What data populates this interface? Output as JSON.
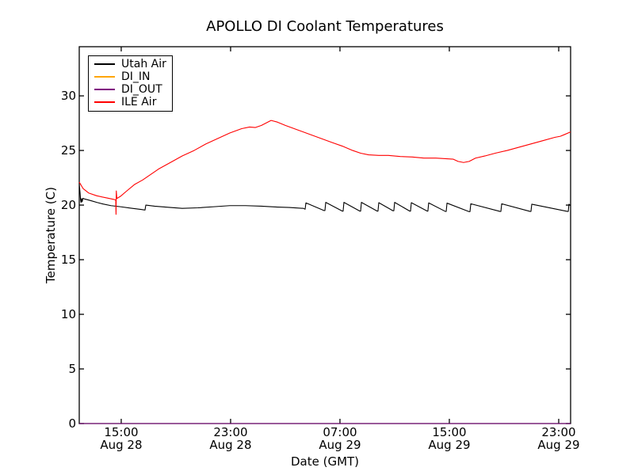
{
  "figure": {
    "title": "APOLLO DI Coolant Temperatures",
    "xlabel": "Date (GMT)",
    "ylabel": "Temperature (C)"
  },
  "chart_data": {
    "type": "line",
    "title": "APOLLO DI Coolant Temperatures",
    "xlabel": "Date (GMT)",
    "ylabel": "Temperature (C)",
    "x_axis_unit": "hours since Aug 28 00:00 GMT",
    "xlim": [
      11.93,
      47.87
    ],
    "ylim": [
      0,
      34.5
    ],
    "grid": false,
    "legend_position": "upper left",
    "x_ticks": [
      {
        "hour": 15,
        "time": "15:00",
        "date": "Aug 28"
      },
      {
        "hour": 23,
        "time": "23:00",
        "date": "Aug 28"
      },
      {
        "hour": 31,
        "time": "07:00",
        "date": "Aug 29"
      },
      {
        "hour": 39,
        "time": "15:00",
        "date": "Aug 29"
      },
      {
        "hour": 47,
        "time": "23:00",
        "date": "Aug 29"
      }
    ],
    "y_ticks": [
      0,
      5,
      10,
      15,
      20,
      25,
      30
    ],
    "series": [
      {
        "name": "Utah Air",
        "color": "#000000",
        "points": [
          [
            11.93,
            21.9
          ],
          [
            11.99,
            21.1
          ],
          [
            12.03,
            20.45
          ],
          [
            12.06,
            20.25
          ],
          [
            12.1,
            20.6
          ],
          [
            12.14,
            20.3
          ],
          [
            12.2,
            20.62
          ],
          [
            12.34,
            20.55
          ],
          [
            12.51,
            20.5
          ],
          [
            12.8,
            20.4
          ],
          [
            13.21,
            20.25
          ],
          [
            13.67,
            20.1
          ],
          [
            14.25,
            19.95
          ],
          [
            14.94,
            19.85
          ],
          [
            15.7,
            19.72
          ],
          [
            16.45,
            19.6
          ],
          [
            16.74,
            19.55
          ],
          [
            16.8,
            20.0
          ],
          [
            17.44,
            19.9
          ],
          [
            18.6,
            19.78
          ],
          [
            19.46,
            19.7
          ],
          [
            20.62,
            19.75
          ],
          [
            21.78,
            19.85
          ],
          [
            22.94,
            19.95
          ],
          [
            24.1,
            19.95
          ],
          [
            25.26,
            19.9
          ],
          [
            26.42,
            19.82
          ],
          [
            27.29,
            19.78
          ],
          [
            28.33,
            19.7
          ],
          [
            28.45,
            19.62
          ],
          [
            28.51,
            20.2
          ],
          [
            29.84,
            19.5
          ],
          [
            29.9,
            19.5
          ],
          [
            29.96,
            20.25
          ],
          [
            31.17,
            19.45
          ],
          [
            31.23,
            19.45
          ],
          [
            31.29,
            20.25
          ],
          [
            32.45,
            19.45
          ],
          [
            32.51,
            19.45
          ],
          [
            32.57,
            20.25
          ],
          [
            33.72,
            19.45
          ],
          [
            33.78,
            19.45
          ],
          [
            33.84,
            20.22
          ],
          [
            34.88,
            19.48
          ],
          [
            34.94,
            19.48
          ],
          [
            35.0,
            20.25
          ],
          [
            36.1,
            19.45
          ],
          [
            36.16,
            19.45
          ],
          [
            36.22,
            20.22
          ],
          [
            37.38,
            19.45
          ],
          [
            37.43,
            19.45
          ],
          [
            37.49,
            20.2
          ],
          [
            38.71,
            19.42
          ],
          [
            38.77,
            19.42
          ],
          [
            38.83,
            20.18
          ],
          [
            40.45,
            19.4
          ],
          [
            40.51,
            19.4
          ],
          [
            40.57,
            20.12
          ],
          [
            42.71,
            19.42
          ],
          [
            42.77,
            19.42
          ],
          [
            42.83,
            20.12
          ],
          [
            44.91,
            19.42
          ],
          [
            44.97,
            19.42
          ],
          [
            45.03,
            20.08
          ],
          [
            47.64,
            19.42
          ],
          [
            47.7,
            19.42
          ],
          [
            47.75,
            20.08
          ],
          [
            47.87,
            19.95
          ]
        ]
      },
      {
        "name": "DI_IN",
        "color": "#ffa500",
        "points": [
          [
            11.93,
            0
          ],
          [
            47.87,
            0
          ]
        ]
      },
      {
        "name": "DI_OUT",
        "color": "#800080",
        "points": [
          [
            11.93,
            0
          ],
          [
            47.87,
            0
          ]
        ]
      },
      {
        "name": "ILE Air",
        "color": "#ff0000",
        "points": [
          [
            11.93,
            22.1
          ],
          [
            12.22,
            21.5
          ],
          [
            12.63,
            21.1
          ],
          [
            13.21,
            20.85
          ],
          [
            13.96,
            20.65
          ],
          [
            14.54,
            20.5
          ],
          [
            14.6,
            20.45
          ],
          [
            14.62,
            19.15
          ],
          [
            14.64,
            21.3
          ],
          [
            14.68,
            20.6
          ],
          [
            14.94,
            20.8
          ],
          [
            15.41,
            21.3
          ],
          [
            15.99,
            21.9
          ],
          [
            16.57,
            22.3
          ],
          [
            17.15,
            22.8
          ],
          [
            17.73,
            23.3
          ],
          [
            18.6,
            23.9
          ],
          [
            19.46,
            24.5
          ],
          [
            20.33,
            25.0
          ],
          [
            21.2,
            25.6
          ],
          [
            22.07,
            26.1
          ],
          [
            22.94,
            26.6
          ],
          [
            23.81,
            27.0
          ],
          [
            24.39,
            27.15
          ],
          [
            24.8,
            27.1
          ],
          [
            25.26,
            27.3
          ],
          [
            25.96,
            27.75
          ],
          [
            26.42,
            27.6
          ],
          [
            27.0,
            27.3
          ],
          [
            27.87,
            26.9
          ],
          [
            28.74,
            26.5
          ],
          [
            29.61,
            26.1
          ],
          [
            30.48,
            25.7
          ],
          [
            31.17,
            25.4
          ],
          [
            31.93,
            25.0
          ],
          [
            32.51,
            24.75
          ],
          [
            33.09,
            24.6
          ],
          [
            33.84,
            24.55
          ],
          [
            34.54,
            24.55
          ],
          [
            35.41,
            24.45
          ],
          [
            36.28,
            24.4
          ],
          [
            37.14,
            24.3
          ],
          [
            38.01,
            24.3
          ],
          [
            38.71,
            24.25
          ],
          [
            39.29,
            24.2
          ],
          [
            39.64,
            24.0
          ],
          [
            40.04,
            23.9
          ],
          [
            40.45,
            24.0
          ],
          [
            40.91,
            24.3
          ],
          [
            41.61,
            24.5
          ],
          [
            42.36,
            24.75
          ],
          [
            43.23,
            25.0
          ],
          [
            44.1,
            25.3
          ],
          [
            44.97,
            25.6
          ],
          [
            45.84,
            25.9
          ],
          [
            46.71,
            26.2
          ],
          [
            47.12,
            26.3
          ],
          [
            47.41,
            26.45
          ],
          [
            47.87,
            26.7
          ]
        ]
      }
    ]
  }
}
